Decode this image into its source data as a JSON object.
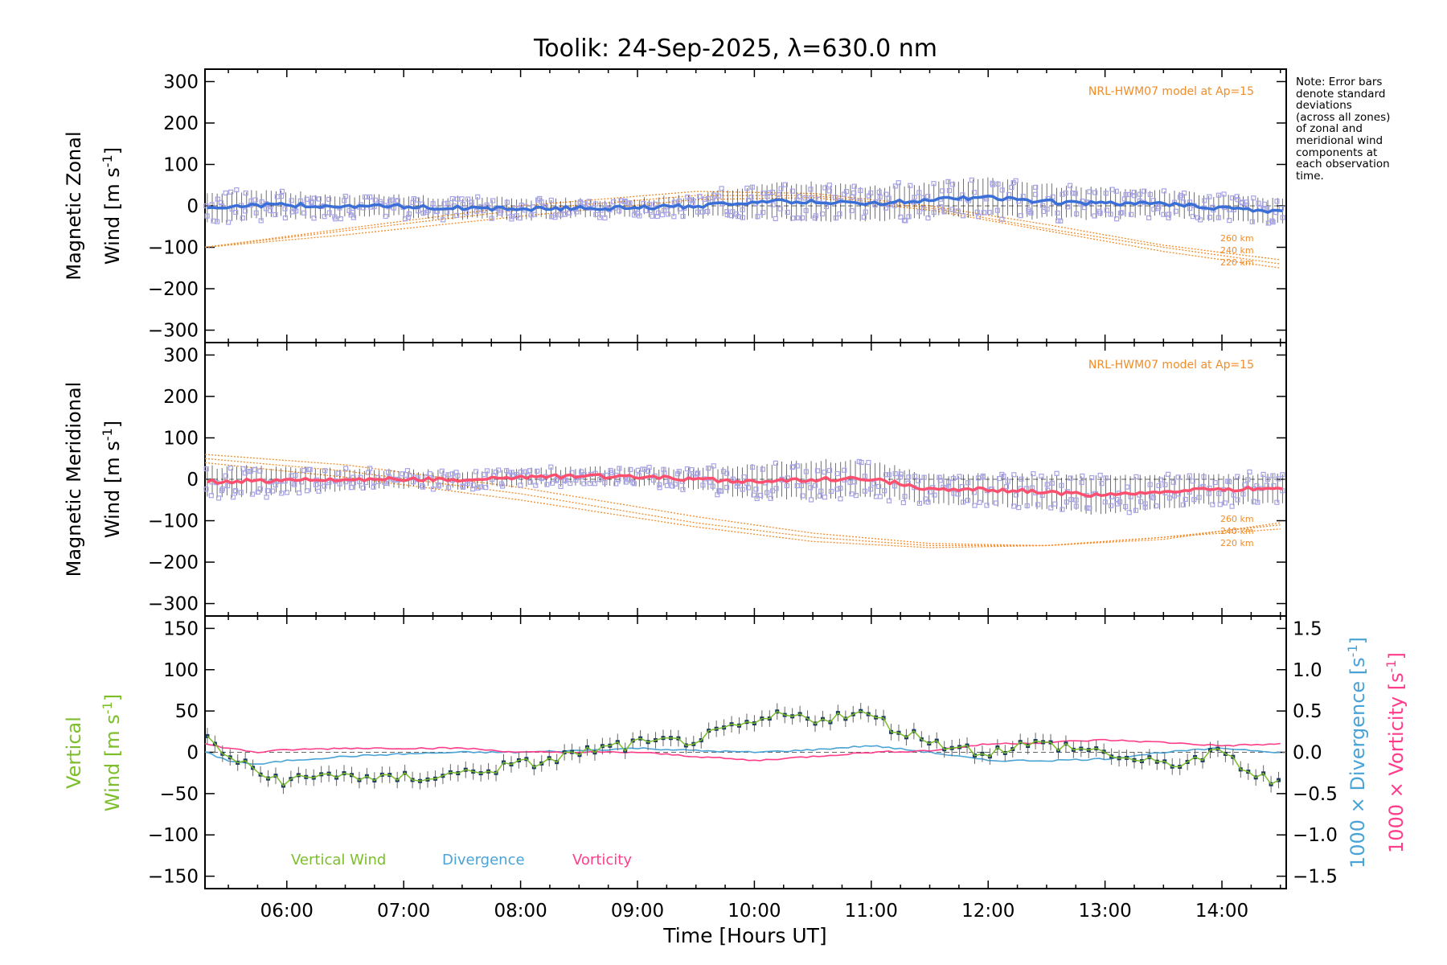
{
  "colors": {
    "zonal": "#3a6fd8",
    "meridional": "#ff4f6f",
    "model": "#f28c28",
    "vertical": "#7cbf2a",
    "divergence": "#4aa3d6",
    "vorticity": "#ff3d8b",
    "scatter": "#a6a3e6",
    "errorbar": "#000000"
  },
  "note": {
    "lines": [
      "Note: Error bars",
      "denote standard",
      "deviations",
      "(across all zones)",
      "of zonal and",
      "meridional wind",
      "components at",
      "each observation",
      "time."
    ]
  },
  "chart_data": [
    {
      "type": "line",
      "title": "Toolik: 24-Sep-2025, λ=630.0 nm",
      "panel": "zonal",
      "ylabel_line1": "Magnetic Zonal",
      "ylabel_line2": "Wind [m s",
      "ylabel_sup": "-1",
      "ylabel_end": "]",
      "ylim": [
        -330,
        330
      ],
      "yticks": [
        300,
        200,
        100,
        0,
        -100,
        -200,
        -300
      ],
      "yticklabels": [
        "300",
        "200",
        "100",
        "0",
        "−100",
        "−200",
        "−300"
      ],
      "model_label": "NRL-HWM07 model at Ap=15",
      "model_curves": [
        {
          "name": "260 km",
          "x": [
            5.3,
            6.5,
            8.0,
            9.5,
            10.5,
            11.5,
            12.5,
            13.5,
            14.5
          ],
          "y": [
            -100,
            -55,
            0,
            35,
            30,
            0,
            -45,
            -95,
            -130
          ]
        },
        {
          "name": "240 km",
          "x": [
            5.3,
            6.5,
            8.0,
            9.5,
            10.5,
            11.5,
            12.5,
            13.5,
            14.5
          ],
          "y": [
            -100,
            -60,
            -10,
            25,
            25,
            -5,
            -55,
            -100,
            -140
          ]
        },
        {
          "name": "220 km",
          "x": [
            5.3,
            6.5,
            8.0,
            9.5,
            10.5,
            11.5,
            12.5,
            13.5,
            14.5
          ],
          "y": [
            -100,
            -70,
            -25,
            15,
            20,
            -10,
            -60,
            -110,
            -150
          ]
        }
      ],
      "series": {
        "name": "Zonal wind",
        "x": [
          5.3,
          5.6,
          6.0,
          6.5,
          7.0,
          7.5,
          8.0,
          8.5,
          9.0,
          9.5,
          10.0,
          10.5,
          11.0,
          11.5,
          12.0,
          12.5,
          13.0,
          13.5,
          14.0,
          14.5
        ],
        "y": [
          -5,
          0,
          2,
          0,
          -2,
          -5,
          -8,
          -5,
          -5,
          0,
          10,
          10,
          5,
          15,
          20,
          10,
          5,
          5,
          -5,
          -15
        ],
        "err": [
          35,
          35,
          30,
          25,
          25,
          25,
          25,
          20,
          20,
          25,
          40,
          45,
          40,
          40,
          45,
          40,
          35,
          30,
          30,
          30
        ]
      }
    },
    {
      "type": "line",
      "panel": "meridional",
      "ylabel_line1": "Magnetic Meridional",
      "ylabel_line2": "Wind [m s",
      "ylabel_sup": "-1",
      "ylabel_end": "]",
      "ylim": [
        -330,
        330
      ],
      "yticks": [
        300,
        200,
        100,
        0,
        -100,
        -200,
        -300
      ],
      "yticklabels": [
        "300",
        "200",
        "100",
        "0",
        "−100",
        "−200",
        "−300"
      ],
      "model_label": "NRL-HWM07 model at Ap=15",
      "model_curves": [
        {
          "name": "260 km",
          "x": [
            5.3,
            6.5,
            8.0,
            9.5,
            10.5,
            11.5,
            12.5,
            13.5,
            14.5
          ],
          "y": [
            60,
            35,
            -20,
            -90,
            -130,
            -155,
            -160,
            -145,
            -105
          ]
        },
        {
          "name": "240 km",
          "x": [
            5.3,
            6.5,
            8.0,
            9.5,
            10.5,
            11.5,
            12.5,
            13.5,
            14.5
          ],
          "y": [
            50,
            20,
            -35,
            -105,
            -140,
            -160,
            -160,
            -140,
            -110
          ]
        },
        {
          "name": "220 km",
          "x": [
            5.3,
            6.5,
            8.0,
            9.5,
            10.5,
            11.5,
            12.5,
            13.5,
            14.5
          ],
          "y": [
            40,
            5,
            -50,
            -115,
            -150,
            -165,
            -160,
            -140,
            -120
          ]
        }
      ],
      "series": {
        "name": "Meridional wind",
        "x": [
          5.3,
          5.6,
          6.0,
          6.5,
          7.0,
          7.5,
          8.0,
          8.5,
          9.0,
          9.5,
          10.0,
          10.5,
          11.0,
          11.5,
          12.0,
          12.5,
          13.0,
          13.5,
          14.0,
          14.5
        ],
        "y": [
          -5,
          -5,
          -2,
          0,
          0,
          0,
          5,
          8,
          5,
          0,
          -5,
          0,
          2,
          -25,
          -25,
          -30,
          -40,
          -30,
          -25,
          -20
        ],
        "err": [
          35,
          35,
          30,
          25,
          20,
          20,
          20,
          20,
          20,
          25,
          40,
          45,
          40,
          35,
          35,
          40,
          45,
          40,
          35,
          35
        ]
      }
    },
    {
      "type": "line",
      "panel": "vertical",
      "xlabel": "Time [Hours UT]",
      "xticks": [
        6,
        7,
        8,
        9,
        10,
        11,
        12,
        13,
        14
      ],
      "xticklabels": [
        "06:00",
        "07:00",
        "08:00",
        "09:00",
        "10:00",
        "11:00",
        "12:00",
        "13:00",
        "14:00"
      ],
      "xlim": [
        5.3,
        14.55
      ],
      "ylabel_line1": "Vertical",
      "ylabel_line2": "Wind [m s",
      "ylabel_sup": "-1",
      "ylabel_end": "]",
      "ylim": [
        -165,
        165
      ],
      "yticks": [
        150,
        100,
        50,
        0,
        -50,
        -100,
        -150
      ],
      "yticklabels": [
        "150",
        "100",
        "50",
        "0",
        "−50",
        "−100",
        "−150"
      ],
      "y2lim": [
        -1.65,
        1.65
      ],
      "y2ticks": [
        1.5,
        1.0,
        0.5,
        0.0,
        -0.5,
        -1.0,
        -1.5
      ],
      "y2ticklabels": [
        "1.5",
        "1.0",
        "0.5",
        "0.0",
        "−0.5",
        "−1.0",
        "−1.5"
      ],
      "y2label_div": "1000 × Divergence [s",
      "y2label_vort": "1000 × Vorticity [s",
      "y2label_sup": "-1",
      "y2label_end": "]",
      "legend": [
        "Vertical Wind",
        "Divergence",
        "Vorticity"
      ],
      "series": [
        {
          "name": "Vertical Wind",
          "x": [
            5.3,
            5.5,
            5.75,
            6.0,
            6.25,
            6.5,
            6.75,
            7.0,
            7.25,
            7.5,
            7.75,
            8.0,
            8.25,
            8.5,
            8.75,
            9.0,
            9.25,
            9.5,
            9.75,
            10.0,
            10.25,
            10.5,
            10.75,
            11.0,
            11.25,
            11.5,
            11.75,
            12.0,
            12.25,
            12.5,
            12.75,
            13.0,
            13.25,
            13.5,
            13.75,
            14.0,
            14.25,
            14.5
          ],
          "y": [
            20,
            -5,
            -25,
            -35,
            -30,
            -25,
            -35,
            -30,
            -30,
            -25,
            -20,
            -15,
            -10,
            0,
            5,
            10,
            12,
            15,
            25,
            35,
            45,
            40,
            45,
            45,
            25,
            15,
            5,
            0,
            8,
            10,
            5,
            0,
            -10,
            -15,
            -10,
            0,
            -25,
            -40
          ]
        },
        {
          "name": "Divergence",
          "x": [
            5.3,
            5.5,
            5.75,
            6.0,
            6.5,
            7.0,
            7.5,
            8.0,
            8.5,
            9.0,
            9.5,
            10.0,
            10.5,
            11.0,
            11.5,
            12.0,
            12.5,
            13.0,
            13.5,
            14.0,
            14.5
          ],
          "y": [
            0.0,
            -0.1,
            -0.15,
            -0.1,
            -0.05,
            -0.02,
            0.0,
            0.0,
            0.02,
            0.05,
            0.02,
            0.0,
            0.03,
            0.08,
            0.0,
            -0.1,
            -0.1,
            -0.08,
            0.0,
            0.05,
            0.0
          ]
        },
        {
          "name": "Vorticity",
          "x": [
            5.3,
            5.5,
            5.75,
            6.0,
            6.5,
            7.0,
            7.5,
            8.0,
            8.5,
            9.0,
            9.5,
            10.0,
            10.5,
            11.0,
            11.5,
            12.0,
            12.5,
            13.0,
            13.5,
            14.0,
            14.5
          ],
          "y": [
            0.1,
            0.05,
            0.0,
            0.03,
            0.05,
            0.05,
            0.05,
            0.0,
            0.0,
            0.0,
            -0.05,
            -0.1,
            -0.05,
            0.0,
            0.02,
            0.1,
            0.12,
            0.15,
            0.12,
            0.08,
            0.1
          ]
        }
      ]
    }
  ]
}
